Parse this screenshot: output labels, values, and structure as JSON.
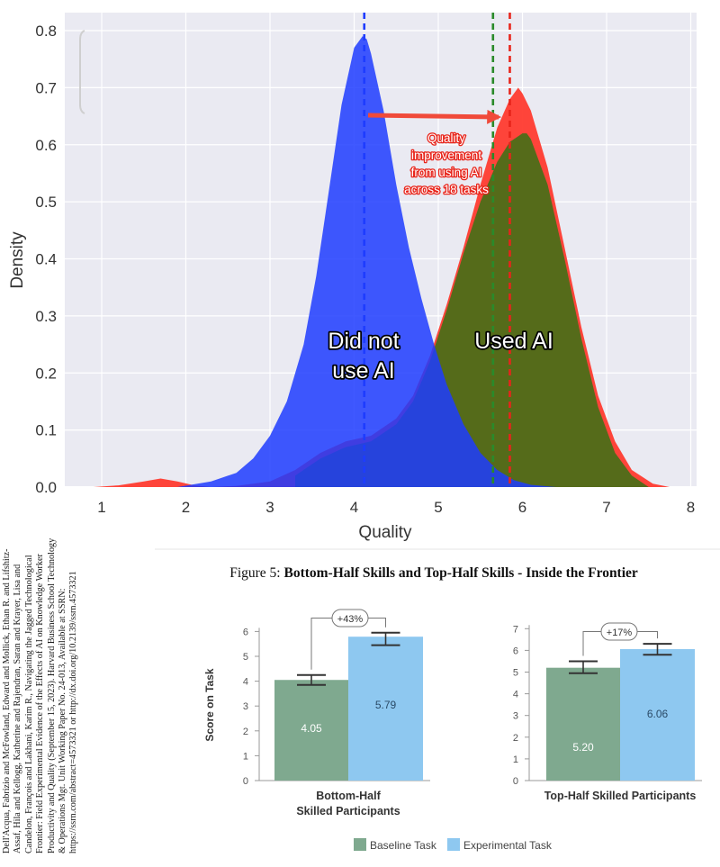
{
  "density_chart": {
    "xlabel": "Quality",
    "ylabel": "Density",
    "annotation_lines": [
      "Quality",
      "improvement",
      "from using AI",
      "across 18 tasks"
    ],
    "label_no_ai": [
      "Did not",
      "use AI"
    ],
    "label_ai": "Used AI",
    "colors": {
      "no_ai": "#1e3cff",
      "ai_outer": "#ff3b2f",
      "ai_inner": "#556b1a",
      "mean_green": "#2a8a2a",
      "mean_red": "#e8241a",
      "arrow": "#f04a3a"
    }
  },
  "citation": "Dell'Acqua, Fabrizio and McFowland, Edward and Mollick, Ethan R. and Lifshitz-Assaf, Hila and Kellogg, Katherine and Rajendran, Saran and Krayer, Lisa and Candelon, François and Lakhani, Karim R., Navigating the Jagged Technological Frontier: Field Experimental Evidence of the Effects of AI on Knowledge Worker Productivity and Quality (September 15, 2023). Harvard Business School Technology & Operations Mgt. Unit Working Paper No. 24-013, Available at SSRN: https://ssrn.com/abstract=4573321 or http://dx.doi.org/10.2139/ssrn.4573321",
  "figure5": {
    "caption_prefix": "Figure 5: ",
    "caption_bold": "Bottom-Half Skills and Top-Half Skills - Inside the Frontier",
    "ylabel": "Score on Task",
    "legend": [
      "Baseline Task",
      "Experimental Task"
    ],
    "colors": {
      "baseline": "#7fa98f",
      "experimental": "#8ec8f0"
    }
  },
  "chart_data": [
    {
      "type": "area",
      "xlabel": "Quality",
      "ylabel": "Density",
      "xlim": [
        0.7,
        8.1
      ],
      "ylim": [
        0,
        0.8
      ],
      "xticks": [
        1,
        2,
        3,
        4,
        5,
        6,
        7,
        8
      ],
      "yticks": [
        0.0,
        0.1,
        0.2,
        0.3,
        0.4,
        0.5,
        0.6,
        0.7,
        0.8
      ],
      "grid": true,
      "series": [
        {
          "name": "Did not use AI",
          "x": [
            1.9,
            2.3,
            2.6,
            2.8,
            3.0,
            3.2,
            3.4,
            3.55,
            3.7,
            3.85,
            4.0,
            4.1,
            4.15,
            4.2,
            4.35,
            4.5,
            4.65,
            4.8,
            4.95,
            5.1,
            5.3,
            5.5,
            5.7,
            5.9,
            6.1,
            6.4
          ],
          "y": [
            0.0,
            0.01,
            0.025,
            0.05,
            0.09,
            0.15,
            0.25,
            0.37,
            0.52,
            0.67,
            0.77,
            0.79,
            0.785,
            0.76,
            0.66,
            0.53,
            0.42,
            0.33,
            0.25,
            0.18,
            0.11,
            0.06,
            0.03,
            0.012,
            0.004,
            0.0
          ]
        },
        {
          "name": "Used AI",
          "x": [
            0.9,
            1.2,
            1.5,
            1.7,
            1.9,
            2.1,
            2.3,
            2.6,
            3.0,
            3.3,
            3.6,
            3.9,
            4.2,
            4.5,
            4.7,
            4.9,
            5.1,
            5.3,
            5.5,
            5.7,
            5.85,
            5.95,
            6.0,
            6.1,
            6.3,
            6.5,
            6.7,
            6.9,
            7.1,
            7.3,
            7.55,
            7.75
          ],
          "y": [
            0.0,
            0.003,
            0.01,
            0.015,
            0.01,
            0.003,
            0.0,
            0.002,
            0.01,
            0.03,
            0.06,
            0.08,
            0.09,
            0.12,
            0.16,
            0.23,
            0.32,
            0.42,
            0.53,
            0.63,
            0.68,
            0.7,
            0.69,
            0.66,
            0.56,
            0.42,
            0.28,
            0.16,
            0.08,
            0.03,
            0.006,
            0.0
          ]
        },
        {
          "name": "Used AI (inner)",
          "x": [
            3.3,
            3.6,
            3.9,
            4.2,
            4.5,
            4.7,
            4.9,
            5.1,
            5.3,
            5.5,
            5.7,
            5.85,
            6.0,
            6.05,
            6.1,
            6.3,
            6.5,
            6.7,
            6.9,
            7.1,
            7.3,
            7.5
          ],
          "y": [
            0.02,
            0.05,
            0.07,
            0.08,
            0.11,
            0.15,
            0.22,
            0.31,
            0.41,
            0.5,
            0.57,
            0.605,
            0.62,
            0.62,
            0.61,
            0.53,
            0.4,
            0.26,
            0.14,
            0.06,
            0.02,
            0.0
          ]
        }
      ],
      "reference_lines": [
        {
          "x": 4.12,
          "color": "#1e3cff"
        },
        {
          "x": 5.65,
          "color": "#2a8a2a"
        },
        {
          "x": 5.85,
          "color": "#e8241a"
        }
      ]
    },
    {
      "type": "bar",
      "title": "Bottom-Half Skilled Participants",
      "ylabel": "Score on Task",
      "ylim": [
        0,
        6
      ],
      "yticks": [
        0,
        1,
        2,
        3,
        4,
        5,
        6
      ],
      "series": [
        {
          "name": "Baseline Task",
          "values": [
            4.05
          ],
          "error_low": [
            3.85
          ],
          "error_high": [
            4.25
          ]
        },
        {
          "name": "Experimental Task",
          "values": [
            5.79
          ],
          "error_low": [
            5.45
          ],
          "error_high": [
            5.95
          ]
        }
      ],
      "value_labels": [
        "4.05",
        "5.79"
      ],
      "improvement_label": "+43%"
    },
    {
      "type": "bar",
      "title": "Top-Half Skilled Participants",
      "ylim": [
        0,
        7
      ],
      "yticks": [
        0,
        1,
        2,
        3,
        4,
        5,
        6,
        7
      ],
      "series": [
        {
          "name": "Baseline Task",
          "values": [
            5.2
          ],
          "error_low": [
            4.95
          ],
          "error_high": [
            5.5
          ]
        },
        {
          "name": "Experimental Task",
          "values": [
            6.06
          ],
          "error_low": [
            5.8
          ],
          "error_high": [
            6.3
          ]
        }
      ],
      "value_labels": [
        "5.20",
        "6.06"
      ],
      "improvement_label": "+17%"
    }
  ]
}
